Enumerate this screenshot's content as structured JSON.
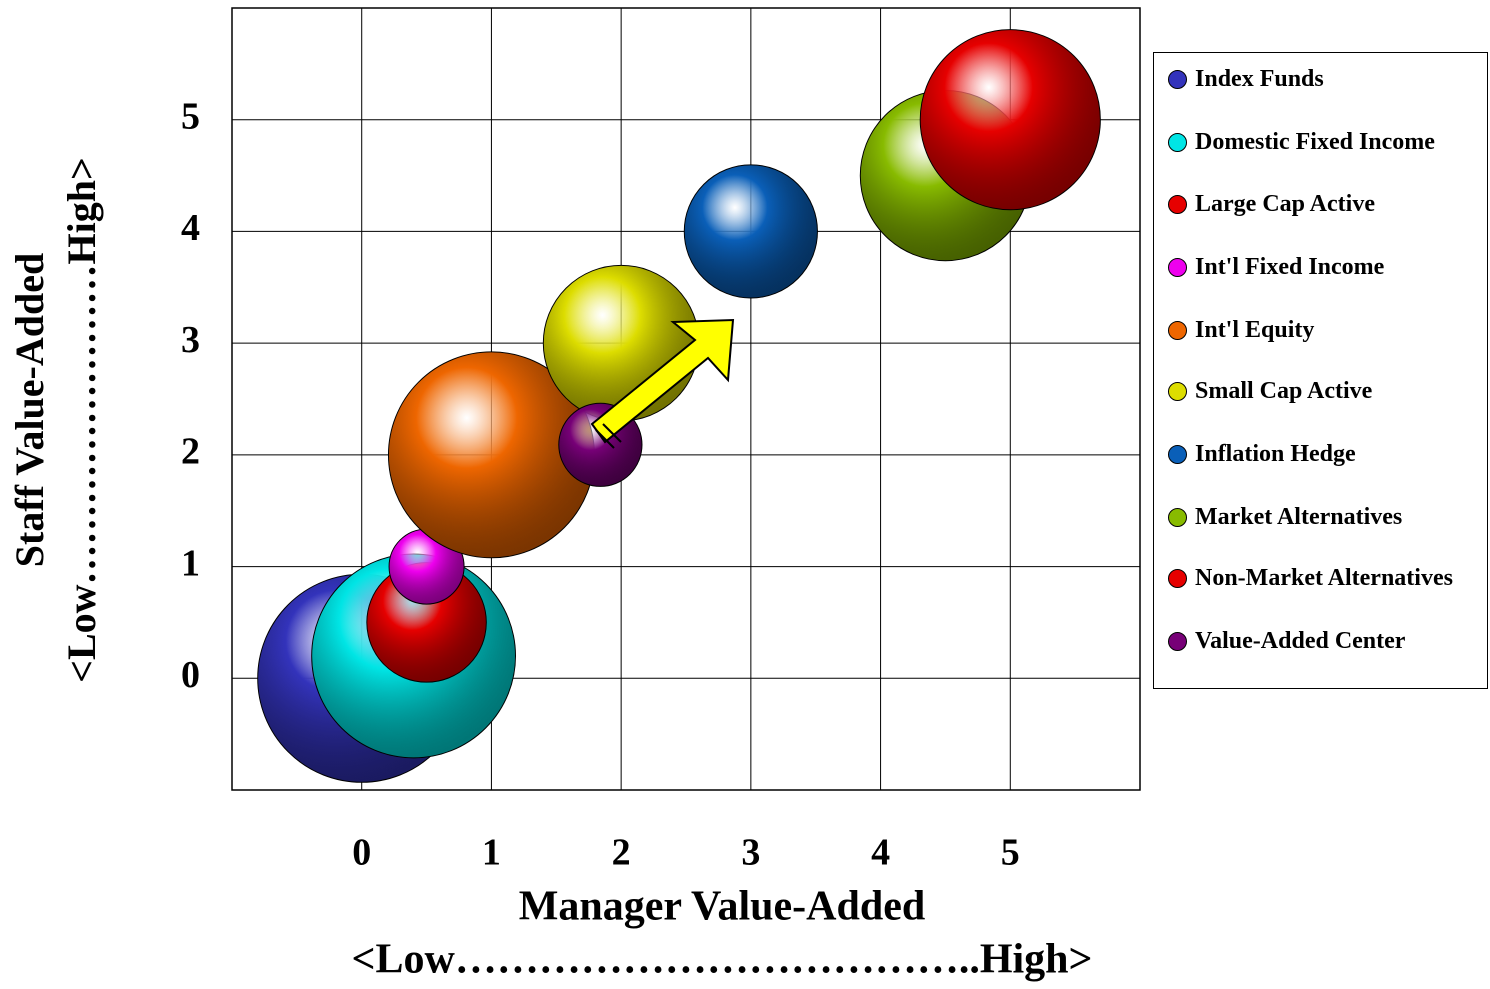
{
  "chart_data": {
    "type": "bubble",
    "x_label": "Manager Value-Added",
    "x_label_range": "<Low………………………………..High>",
    "y_label": "Staff Value-Added",
    "y_label_range": "<Low……………………High>",
    "xlim": [
      -1,
      6
    ],
    "xticks": [
      0,
      1,
      2,
      3,
      4,
      5
    ],
    "ylim": [
      -1,
      6
    ],
    "yticks": [
      0,
      1,
      2,
      3,
      4,
      5
    ],
    "grid": true,
    "legend": "right",
    "series": [
      {
        "name": "Index Funds",
        "color": "#3333bb",
        "x": [
          0
        ],
        "values": [
          0
        ],
        "sizes": [
          100
        ]
      },
      {
        "name": "Domestic Fixed Income",
        "color": "#00e5e5",
        "x": [
          0.4
        ],
        "values": [
          0.2
        ],
        "sizes": [
          96
        ]
      },
      {
        "name": "Large Cap Active",
        "color": "#e60000",
        "x": [
          0.5
        ],
        "values": [
          0.5
        ],
        "sizes": [
          33
        ]
      },
      {
        "name": "Int'l Fixed Income",
        "color": "#ee00ee",
        "x": [
          0.5
        ],
        "values": [
          1
        ],
        "sizes": [
          13
        ]
      },
      {
        "name": "Int'l Equity",
        "color": "#ee6600",
        "x": [
          1
        ],
        "values": [
          2
        ],
        "sizes": [
          98
        ]
      },
      {
        "name": "Small Cap Active",
        "color": "#dddd00",
        "x": [
          2
        ],
        "values": [
          3
        ],
        "sizes": [
          56
        ]
      },
      {
        "name": "Inflation Hedge",
        "color": "#0a5fb8",
        "x": [
          3
        ],
        "values": [
          4
        ],
        "sizes": [
          41
        ]
      },
      {
        "name": "Market Alternatives",
        "color": "#88bb00",
        "x": [
          4.5
        ],
        "values": [
          4.5
        ],
        "sizes": [
          67
        ]
      },
      {
        "name": "Non-Market Alternatives",
        "color": "#e60000",
        "x": [
          5
        ],
        "values": [
          5
        ],
        "sizes": [
          75
        ]
      },
      {
        "name": "Value-Added Center",
        "color": "#770077",
        "x": [
          1.84
        ],
        "values": [
          2.09
        ],
        "sizes": [
          16
        ]
      }
    ]
  }
}
